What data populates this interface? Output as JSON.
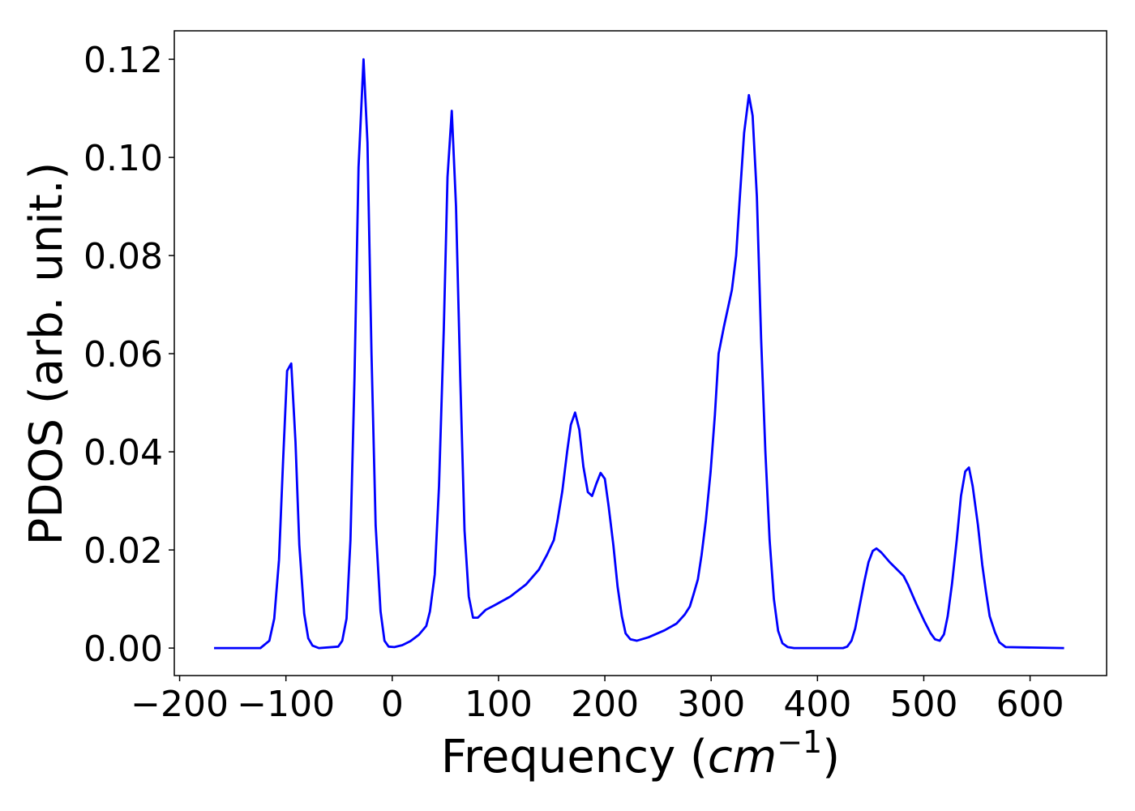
{
  "chart_data": {
    "type": "line",
    "xlabel": [
      "Frequency (",
      "cm",
      "−1",
      ")"
    ],
    "ylabel": "PDOS (arb. unit.)",
    "xlim": [
      -205,
      672
    ],
    "ylim": [
      -0.0056,
      0.1258
    ],
    "xticks": [
      {
        "value": -200,
        "label": "−200"
      },
      {
        "value": -100,
        "label": "−100"
      },
      0,
      100,
      200,
      300,
      400,
      500,
      600
    ],
    "yticks": [
      {
        "value": 0,
        "label": "0.00"
      },
      0.02,
      0.04,
      0.06,
      0.08,
      {
        "value": 0.1,
        "label": "0.10"
      },
      0.12
    ],
    "color": "#0000ff",
    "x": [
      -167.6,
      -124,
      -115.6,
      -111,
      -106.5,
      -102.7,
      -98.9,
      -95,
      -91,
      -87.4,
      -82.8,
      -79,
      -75,
      -69,
      -50.8,
      -47,
      -43,
      -39.3,
      -35.5,
      -31.7,
      -27,
      -23.3,
      -19.5,
      -15.6,
      -11,
      -7.3,
      -3.4,
      2,
      9.5,
      17,
      25,
      32,
      35.5,
      40,
      44,
      48.5,
      52,
      56,
      60,
      64,
      68,
      72,
      76,
      80.5,
      88,
      96,
      111,
      126,
      138,
      145.5,
      152,
      155.5,
      160,
      164.5,
      168,
      172,
      176,
      179.8,
      184,
      188,
      192,
      196,
      200,
      203.5,
      208,
      212,
      216,
      219.5,
      224,
      230,
      241,
      256,
      267.5,
      275,
      280,
      283.5,
      287.5,
      291,
      295,
      299.5,
      303.5,
      307,
      312,
      319.5,
      323.5,
      327,
      331,
      335.5,
      339,
      343,
      347,
      351,
      355,
      359,
      363,
      367,
      372,
      378,
      424,
      428,
      432,
      435.5,
      440,
      444,
      448,
      452,
      455.5,
      460,
      468,
      475,
      481,
      485,
      493,
      500.5,
      506.5,
      510.5,
      515,
      519,
      522.5,
      526.5,
      531,
      535,
      539,
      542.5,
      546,
      551,
      555,
      558.5,
      562,
      567,
      571,
      577,
      632
    ],
    "y": [
      0,
      0,
      0.0015,
      0.006,
      0.018,
      0.038,
      0.0565,
      0.058,
      0.042,
      0.021,
      0.007,
      0.002,
      0.0005,
      0,
      0.0003,
      0.0015,
      0.006,
      0.022,
      0.055,
      0.098,
      0.12,
      0.103,
      0.06,
      0.025,
      0.0075,
      0.0015,
      0.0003,
      0.0002,
      0.0006,
      0.0014,
      0.0027,
      0.0045,
      0.0075,
      0.015,
      0.033,
      0.065,
      0.096,
      0.1095,
      0.09,
      0.055,
      0.024,
      0.0105,
      0.0062,
      0.0062,
      0.0078,
      0.0087,
      0.0105,
      0.013,
      0.016,
      0.019,
      0.022,
      0.026,
      0.032,
      0.04,
      0.0455,
      0.048,
      0.0445,
      0.037,
      0.0318,
      0.031,
      0.0335,
      0.0357,
      0.0345,
      0.029,
      0.021,
      0.0125,
      0.0065,
      0.003,
      0.0018,
      0.0015,
      0.0022,
      0.0036,
      0.005,
      0.0068,
      0.0085,
      0.011,
      0.014,
      0.019,
      0.026,
      0.036,
      0.0475,
      0.06,
      0.0655,
      0.073,
      0.08,
      0.092,
      0.105,
      0.1127,
      0.1085,
      0.092,
      0.063,
      0.04,
      0.022,
      0.01,
      0.0035,
      0.001,
      0.0002,
      0,
      0,
      0.0003,
      0.0015,
      0.004,
      0.009,
      0.0135,
      0.0175,
      0.0198,
      0.0203,
      0.0195,
      0.0175,
      0.016,
      0.0147,
      0.013,
      0.009,
      0.0055,
      0.003,
      0.0018,
      0.0015,
      0.0028,
      0.0065,
      0.013,
      0.022,
      0.031,
      0.036,
      0.0368,
      0.033,
      0.025,
      0.017,
      0.0115,
      0.0065,
      0.0032,
      0.0012,
      0.0002,
      0
    ]
  }
}
